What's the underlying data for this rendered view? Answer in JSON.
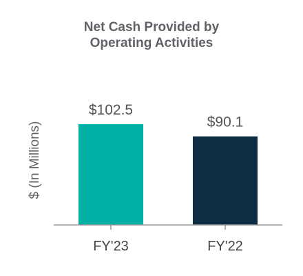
{
  "chart_data": {
    "type": "bar",
    "title_lines": [
      "Net Cash Provided by",
      "Operating Activities"
    ],
    "ylabel": "$ (In Millions)",
    "xlabel": "",
    "categories": [
      "FY'23",
      "FY'22"
    ],
    "values": [
      102.5,
      90.1
    ],
    "data_labels": [
      "$102.5",
      "$90.1"
    ],
    "colors": [
      "#00b0a5",
      "#0d2d42"
    ],
    "axis_color": "#999999",
    "ylim": [
      0,
      102.5
    ],
    "grid": false,
    "legend": "none"
  }
}
